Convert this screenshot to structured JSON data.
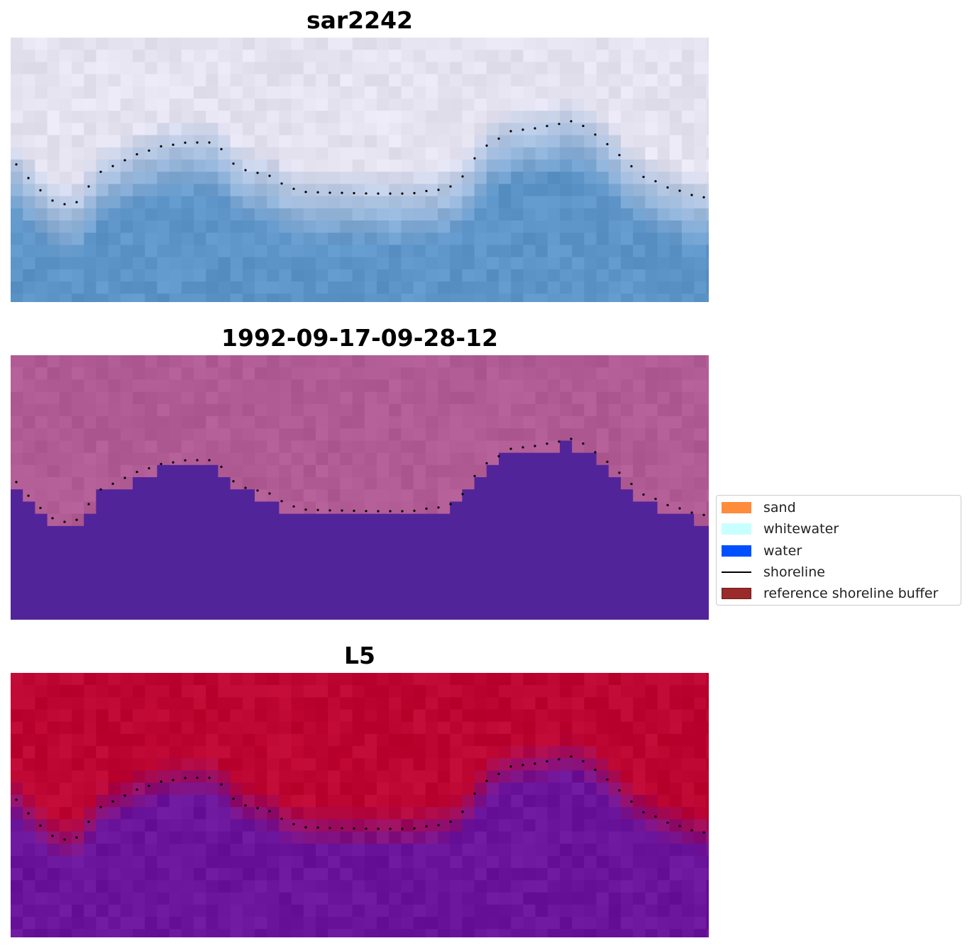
{
  "panels": [
    {
      "title": "sar2242",
      "style": "sar"
    },
    {
      "title": "1992-09-17-09-28-12",
      "style": "classified"
    },
    {
      "title": "L5",
      "style": "probability"
    }
  ],
  "legend": {
    "items": [
      {
        "label": "sand",
        "color": "#ff8c3c",
        "kind": "patch"
      },
      {
        "label": "whitewater",
        "color": "#c8ffff",
        "kind": "patch"
      },
      {
        "label": "water",
        "color": "#0050ff",
        "kind": "patch"
      },
      {
        "label": "shoreline",
        "color": "#000000",
        "kind": "line"
      },
      {
        "label": "reference shoreline buffer",
        "color": "#9b2a2a",
        "edge": "#6e1a1a",
        "kind": "patch"
      }
    ]
  },
  "colors": {
    "classified_land": "#b05b94",
    "classified_water": "#52249a",
    "probability_high": "#bd0532",
    "probability_low": "#6a149c",
    "sar_land": "#e6e3f1",
    "sar_water": "#5d95c9"
  }
}
